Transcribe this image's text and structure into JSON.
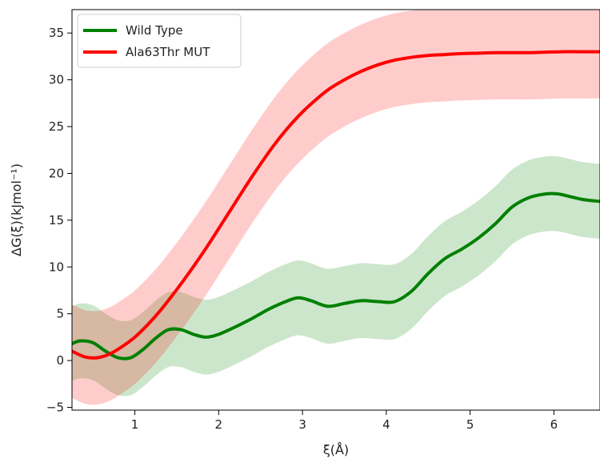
{
  "chart_data": {
    "type": "line",
    "title": "",
    "xlabel": "ξ(Å)",
    "ylabel": "ΔG(ξ)(kJmol⁻¹)",
    "xlim": [
      0.25,
      6.55
    ],
    "ylim": [
      -5.3,
      37.5
    ],
    "xticks": [
      1,
      2,
      3,
      4,
      5,
      6
    ],
    "yticks": [
      -5,
      0,
      5,
      10,
      15,
      20,
      25,
      30,
      35
    ],
    "grid": false,
    "legend_position": "top-left",
    "series": [
      {
        "name": "Wild Type",
        "color": "#008000",
        "band_color": "#008000",
        "band_opacity": 0.2,
        "x": [
          0.25,
          0.35,
          0.5,
          0.65,
          0.8,
          0.95,
          1.1,
          1.25,
          1.4,
          1.55,
          1.7,
          1.85,
          2.0,
          2.2,
          2.4,
          2.6,
          2.8,
          2.95,
          3.1,
          3.3,
          3.5,
          3.7,
          3.9,
          4.1,
          4.3,
          4.5,
          4.7,
          4.9,
          5.1,
          5.3,
          5.5,
          5.7,
          5.9,
          6.05,
          6.2,
          6.35,
          6.55
        ],
        "y": [
          1.8,
          2.1,
          1.9,
          1.0,
          0.3,
          0.3,
          1.2,
          2.4,
          3.3,
          3.3,
          2.8,
          2.5,
          2.8,
          3.6,
          4.5,
          5.5,
          6.3,
          6.7,
          6.4,
          5.8,
          6.1,
          6.4,
          6.3,
          6.3,
          7.4,
          9.3,
          10.9,
          11.9,
          13.1,
          14.6,
          16.4,
          17.4,
          17.8,
          17.8,
          17.5,
          17.2,
          17.0
        ],
        "lower": [
          -2.2,
          -1.9,
          -2.1,
          -3.0,
          -3.7,
          -3.7,
          -2.8,
          -1.6,
          -0.7,
          -0.7,
          -1.2,
          -1.5,
          -1.2,
          -0.4,
          0.5,
          1.5,
          2.3,
          2.7,
          2.4,
          1.8,
          2.1,
          2.4,
          2.3,
          2.3,
          3.4,
          5.3,
          6.9,
          7.9,
          9.1,
          10.6,
          12.4,
          13.4,
          13.8,
          13.8,
          13.5,
          13.2,
          13.0
        ],
        "upper": [
          5.8,
          6.1,
          5.9,
          5.0,
          4.3,
          4.3,
          5.2,
          6.4,
          7.3,
          7.3,
          6.8,
          6.5,
          6.8,
          7.6,
          8.5,
          9.5,
          10.3,
          10.7,
          10.4,
          9.8,
          10.1,
          10.4,
          10.3,
          10.3,
          11.4,
          13.3,
          14.9,
          15.9,
          17.1,
          18.6,
          20.4,
          21.4,
          21.8,
          21.8,
          21.5,
          21.2,
          21.0
        ]
      },
      {
        "name": "Ala63Thr MUT",
        "color": "#ff0000",
        "band_color": "#ff0000",
        "band_opacity": 0.2,
        "x": [
          0.25,
          0.4,
          0.55,
          0.7,
          0.85,
          1.0,
          1.15,
          1.3,
          1.45,
          1.6,
          1.75,
          1.9,
          2.05,
          2.2,
          2.35,
          2.5,
          2.65,
          2.8,
          2.95,
          3.1,
          3.3,
          3.5,
          3.7,
          3.9,
          4.1,
          4.3,
          4.5,
          4.7,
          4.9,
          5.1,
          5.3,
          5.5,
          5.7,
          5.9,
          6.1,
          6.3,
          6.55
        ],
        "y": [
          1.0,
          0.4,
          0.3,
          0.7,
          1.5,
          2.5,
          3.8,
          5.3,
          7.0,
          8.8,
          10.7,
          12.7,
          14.8,
          16.9,
          19.0,
          21.0,
          22.9,
          24.6,
          26.1,
          27.4,
          28.9,
          30.0,
          30.9,
          31.6,
          32.1,
          32.4,
          32.6,
          32.7,
          32.8,
          32.85,
          32.9,
          32.9,
          32.9,
          32.95,
          33.0,
          33.0,
          33.0
        ],
        "lower": [
          -4.0,
          -4.6,
          -4.7,
          -4.3,
          -3.5,
          -2.5,
          -1.2,
          0.3,
          2.0,
          3.8,
          5.7,
          7.7,
          9.8,
          11.9,
          14.0,
          16.0,
          17.9,
          19.6,
          21.1,
          22.4,
          23.9,
          25.0,
          25.9,
          26.6,
          27.1,
          27.4,
          27.6,
          27.7,
          27.8,
          27.85,
          27.9,
          27.9,
          27.9,
          27.95,
          28.0,
          28.0,
          28.0
        ],
        "upper": [
          6.0,
          5.4,
          5.3,
          5.7,
          6.5,
          7.5,
          8.8,
          10.3,
          12.0,
          13.8,
          15.7,
          17.7,
          19.8,
          21.9,
          24.0,
          26.0,
          27.9,
          29.6,
          31.1,
          32.4,
          33.9,
          35.0,
          35.9,
          36.6,
          37.1,
          37.4,
          37.6,
          37.7,
          37.8,
          37.85,
          37.9,
          37.9,
          37.9,
          37.95,
          38.0,
          38.0,
          38.0
        ]
      }
    ]
  }
}
